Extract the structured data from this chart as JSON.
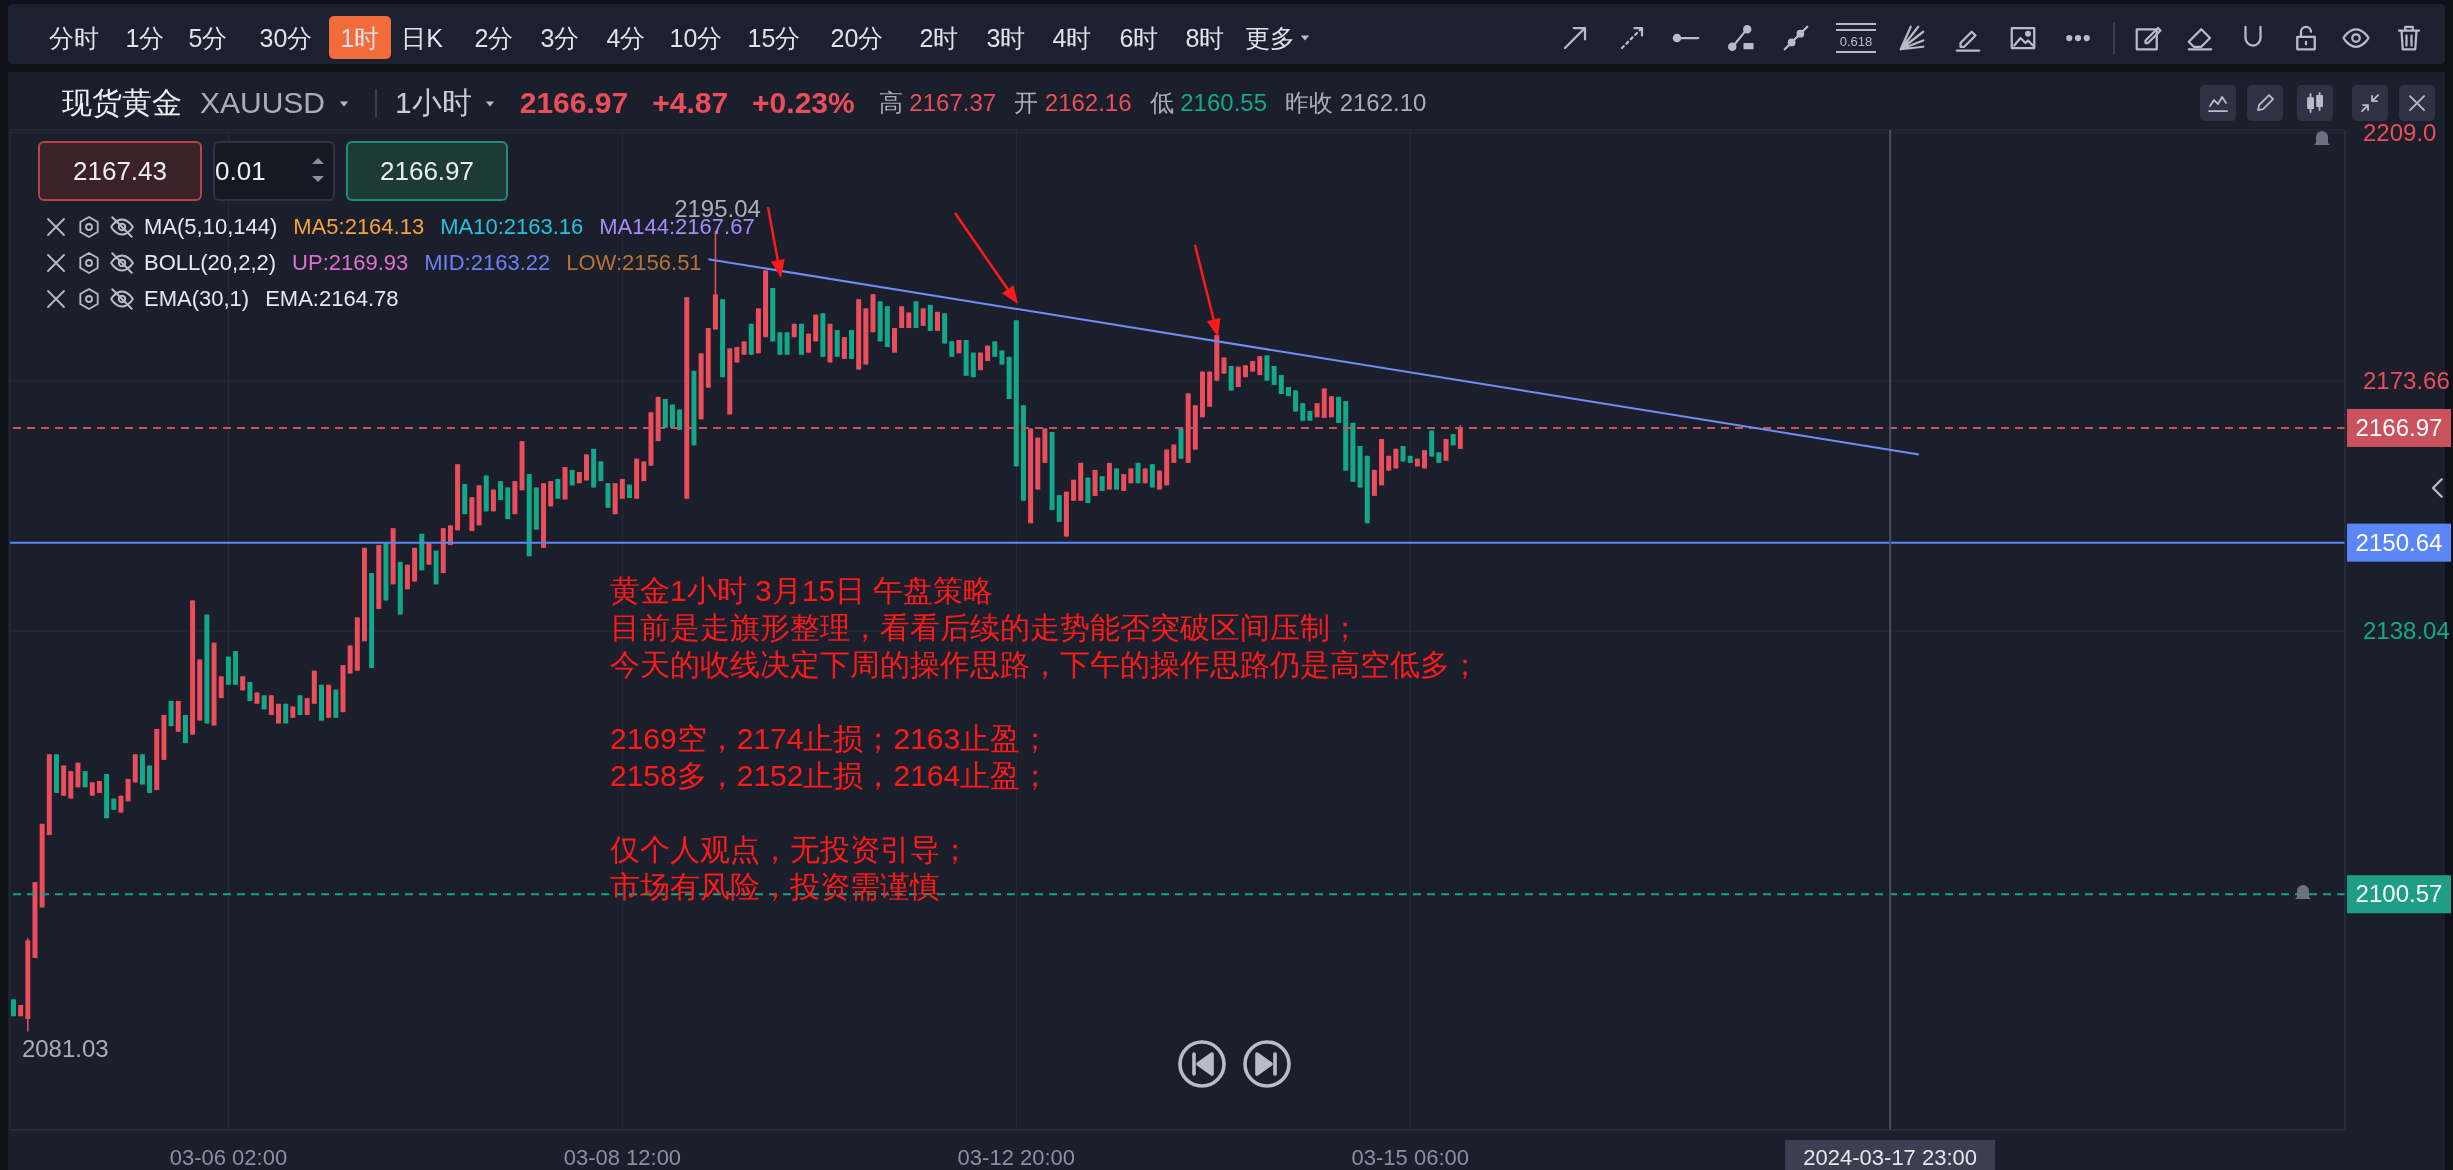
{
  "chart_data": {
    "type": "candlestick",
    "title": "现货黄金 XAUUSD",
    "subtitle": "1小时",
    "categories": [
      null,
      null,
      null,
      null,
      null,
      null,
      null,
      null,
      null,
      null,
      null,
      null,
      null,
      null,
      null,
      null,
      null,
      null,
      null,
      null,
      null,
      null,
      null,
      null,
      null,
      null,
      null,
      null,
      null,
      null,
      "03-06 02:00",
      null,
      null,
      null,
      null,
      null,
      null,
      null,
      null,
      null,
      null,
      null,
      null,
      null,
      null,
      null,
      null,
      null,
      null,
      null,
      null,
      null,
      null,
      null,
      null,
      null,
      null,
      null,
      null,
      null,
      null,
      null,
      null,
      null,
      null,
      null,
      null,
      null,
      null,
      null,
      null,
      null,
      null,
      null,
      null,
      null,
      null,
      null,
      null,
      null,
      null,
      null,
      null,
      null,
      null,
      "03-08 12:00",
      null,
      null,
      null,
      null,
      null,
      null,
      null,
      null,
      null,
      null,
      null,
      null,
      null,
      null,
      null,
      null,
      null,
      null,
      null,
      null,
      null,
      null,
      null,
      null,
      null,
      null,
      null,
      null,
      null,
      null,
      null,
      null,
      null,
      null,
      null,
      null,
      null,
      null,
      null,
      null,
      null,
      null,
      null,
      null,
      null,
      null,
      null,
      null,
      null,
      null,
      null,
      null,
      null,
      null,
      "03-12 20:00",
      null,
      null,
      null,
      null,
      null,
      null,
      null,
      null,
      null,
      null,
      null,
      null,
      null,
      null,
      null,
      null,
      null,
      null,
      null,
      null,
      null,
      null,
      null,
      null,
      null,
      null,
      null,
      null,
      null,
      null,
      null,
      null,
      null,
      null,
      null,
      null,
      null,
      null,
      null,
      null,
      null,
      null,
      null,
      null,
      null,
      null,
      null,
      null,
      null,
      null,
      null,
      null,
      null,
      null,
      "03-15 06:00",
      null,
      null,
      null,
      null,
      null,
      null,
      null,
      null,
      null,
      null,
      null,
      null,
      null,
      null,
      null,
      null,
      null,
      null,
      null,
      null,
      null,
      null,
      null,
      null,
      null,
      null,
      null,
      null,
      null,
      null,
      null,
      null,
      null,
      null,
      null,
      null,
      null,
      null,
      null,
      null,
      null,
      null,
      null,
      null,
      null,
      null,
      null,
      null,
      null,
      null,
      null,
      null,
      null,
      null,
      null,
      null,
      null,
      null,
      null,
      null,
      null,
      null,
      null,
      null,
      null,
      null,
      "2024-03-17 23:00",
      null,
      null,
      null,
      null,
      null,
      null,
      null,
      null,
      null,
      null,
      null,
      null,
      null,
      null,
      null,
      null,
      null,
      null,
      null,
      null,
      null,
      null,
      null,
      null,
      null,
      null,
      null,
      null,
      null,
      null,
      null,
      null,
      null,
      null,
      null,
      null,
      null,
      null,
      null,
      null,
      null,
      null,
      null,
      null,
      null,
      null,
      null,
      null,
      null,
      null,
      null,
      null,
      null,
      null,
      null,
      null,
      null,
      null,
      null,
      null,
      null,
      null,
      null
    ],
    "ohlc": [
      [
        2085.6,
        2085.6,
        2083.2,
        2083.2
      ],
      [
        2083.2,
        2084.8,
        2083.2,
        2084.8
      ],
      [
        2082.8,
        2094.3,
        2081.03,
        2094.0
      ],
      [
        2091.5,
        2102.3,
        2091.5,
        2102.3
      ],
      [
        2098.7,
        2110.6,
        2098.7,
        2110.6
      ],
      [
        2109.0,
        2120.5,
        2109.0,
        2120.5
      ],
      [
        2120.5,
        2120.5,
        2115.0,
        2115.0
      ],
      [
        2114.6,
        2118.9,
        2114.6,
        2118.9
      ],
      [
        2114.2,
        2118.1,
        2114.2,
        2118.1
      ],
      [
        2115.8,
        2119.3,
        2115.8,
        2119.3
      ],
      [
        2118.1,
        2118.1,
        2115.8,
        2115.8
      ],
      [
        2114.6,
        2116.5,
        2114.6,
        2116.5
      ],
      [
        2115.0,
        2116.7,
        2115.0,
        2116.7
      ],
      [
        2117.7,
        2117.7,
        2111.4,
        2111.4
      ],
      [
        2114.2,
        2114.2,
        2112.6,
        2112.6
      ],
      [
        2112.2,
        2114.6,
        2112.2,
        2114.6
      ],
      [
        2113.8,
        2117.0,
        2113.8,
        2117.0
      ],
      [
        2116.5,
        2120.5,
        2116.5,
        2120.5
      ],
      [
        2120.5,
        2120.5,
        2116.2,
        2116.2
      ],
      [
        2118.9,
        2118.9,
        2115.0,
        2115.0
      ],
      [
        2115.4,
        2124.1,
        2115.4,
        2124.1
      ],
      [
        2119.7,
        2126.1,
        2119.7,
        2126.1
      ],
      [
        2128.1,
        2128.1,
        2124.5,
        2124.5
      ],
      [
        2123.7,
        2128.1,
        2123.7,
        2128.1
      ],
      [
        2126.1,
        2126.1,
        2122.1,
        2122.1
      ],
      [
        2123.3,
        2142.4,
        2123.3,
        2142.4
      ],
      [
        2125.3,
        2134.0,
        2125.3,
        2134.0
      ],
      [
        2140.4,
        2140.4,
        2124.9,
        2124.9
      ],
      [
        2124.6,
        2136.4,
        2124.6,
        2136.4
      ],
      [
        2128.5,
        2131.6,
        2128.5,
        2131.6
      ],
      [
        2134.4,
        2134.4,
        2130.4,
        2130.4
      ],
      [
        2135.2,
        2135.2,
        2130.4,
        2130.4
      ],
      [
        2129.6,
        2131.6,
        2129.6,
        2131.6
      ],
      [
        2130.8,
        2130.8,
        2128.1,
        2128.1
      ],
      [
        2127.7,
        2129.3,
        2127.7,
        2129.3
      ],
      [
        2128.9,
        2128.9,
        2126.9,
        2126.9
      ],
      [
        2126.1,
        2128.9,
        2126.1,
        2128.9
      ],
      [
        2124.9,
        2127.7,
        2124.9,
        2127.7
      ],
      [
        2127.7,
        2127.7,
        2124.9,
        2124.9
      ],
      [
        2125.7,
        2127.3,
        2125.7,
        2127.3
      ],
      [
        2128.9,
        2128.9,
        2126.1,
        2126.1
      ],
      [
        2126.1,
        2128.5,
        2126.1,
        2128.5
      ],
      [
        2127.7,
        2132.4,
        2127.7,
        2132.4
      ],
      [
        2130.4,
        2130.4,
        2125.3,
        2125.3
      ],
      [
        2125.7,
        2130.4,
        2125.7,
        2130.4
      ],
      [
        2129.7,
        2129.7,
        2125.7,
        2125.7
      ],
      [
        2126.5,
        2133.2,
        2126.5,
        2133.2
      ],
      [
        2132.0,
        2136.0,
        2132.0,
        2136.0
      ],
      [
        2132.4,
        2140.0,
        2132.4,
        2140.0
      ],
      [
        2136.6,
        2149.9,
        2136.6,
        2149.9
      ],
      [
        2146.3,
        2146.3,
        2132.8,
        2132.8
      ],
      [
        2141.2,
        2150.3,
        2141.2,
        2150.3
      ],
      [
        2150.7,
        2150.7,
        2142.4,
        2142.4
      ],
      [
        2144.7,
        2152.7,
        2144.7,
        2152.7
      ],
      [
        2147.9,
        2147.9,
        2140.4,
        2140.4
      ],
      [
        2144.0,
        2147.5,
        2144.0,
        2147.5
      ],
      [
        2145.1,
        2149.9,
        2145.1,
        2149.9
      ],
      [
        2151.9,
        2151.9,
        2146.7,
        2146.7
      ],
      [
        2147.5,
        2150.7,
        2147.5,
        2150.7
      ],
      [
        2149.5,
        2149.5,
        2144.7,
        2144.7
      ],
      [
        2146.3,
        2152.7,
        2146.3,
        2152.7
      ],
      [
        2150.3,
        2153.1,
        2150.3,
        2153.1
      ],
      [
        2152.4,
        2161.8,
        2152.4,
        2161.8
      ],
      [
        2159.0,
        2159.0,
        2154.7,
        2154.7
      ],
      [
        2152.3,
        2157.1,
        2152.3,
        2157.1
      ],
      [
        2153.1,
        2158.8,
        2153.1,
        2158.8
      ],
      [
        2160.2,
        2160.2,
        2155.1,
        2155.1
      ],
      [
        2155.1,
        2158.2,
        2155.1,
        2158.2
      ],
      [
        2159.4,
        2159.4,
        2156.7,
        2156.7
      ],
      [
        2158.5,
        2158.5,
        2154.0,
        2154.0
      ],
      [
        2154.7,
        2159.4,
        2154.7,
        2159.4
      ],
      [
        2158.1,
        2165.1,
        2158.1,
        2165.1
      ],
      [
        2160.4,
        2160.4,
        2148.7,
        2148.7
      ],
      [
        2158.5,
        2158.5,
        2152.5,
        2152.5
      ],
      [
        2149.9,
        2159.1,
        2149.9,
        2159.1
      ],
      [
        2155.8,
        2159.4,
        2155.8,
        2159.4
      ],
      [
        2159.7,
        2159.7,
        2156.9,
        2156.9
      ],
      [
        2156.8,
        2161.4,
        2156.8,
        2161.4
      ],
      [
        2161.0,
        2161.0,
        2158.8,
        2158.8
      ],
      [
        2159.1,
        2160.7,
        2159.1,
        2160.7
      ],
      [
        2159.5,
        2163.2,
        2159.5,
        2163.2
      ],
      [
        2164.0,
        2164.0,
        2158.5,
        2158.5
      ],
      [
        2162.2,
        2162.2,
        2159.4,
        2159.4
      ],
      [
        2159.1,
        2159.1,
        2155.6,
        2155.6
      ],
      [
        2154.7,
        2159.1,
        2154.7,
        2159.1
      ],
      [
        2156.9,
        2159.7,
        2156.9,
        2159.7
      ],
      [
        2158.9,
        2158.9,
        2157.0,
        2157.0
      ],
      [
        2156.9,
        2162.6,
        2156.9,
        2162.6
      ],
      [
        2159.4,
        2162.2,
        2159.4,
        2162.2
      ],
      [
        2161.6,
        2169.2,
        2161.6,
        2169.2
      ],
      [
        2165.1,
        2171.4,
        2165.1,
        2171.4
      ],
      [
        2171.1,
        2171.1,
        2167.0,
        2167.0
      ],
      [
        2170.3,
        2170.3,
        2167.0,
        2167.0
      ],
      [
        2169.6,
        2169.6,
        2166.7,
        2166.7
      ],
      [
        2156.9,
        2185.6,
        2156.9,
        2185.6
      ],
      [
        2175.1,
        2175.1,
        2164.5,
        2164.5
      ],
      [
        2168.2,
        2177.6,
        2168.2,
        2177.6
      ],
      [
        2172.7,
        2181.2,
        2172.7,
        2181.2
      ],
      [
        2181.0,
        2195.04,
        2181.0,
        2186.0
      ],
      [
        2185.3,
        2185.3,
        2174.2,
        2174.2
      ],
      [
        2168.9,
        2178.3,
        2168.9,
        2178.3
      ],
      [
        2176.3,
        2178.5,
        2176.3,
        2178.5
      ],
      [
        2177.4,
        2179.3,
        2177.4,
        2179.3
      ],
      [
        2181.8,
        2181.8,
        2177.4,
        2177.4
      ],
      [
        2177.6,
        2184.0,
        2177.6,
        2184.0
      ],
      [
        2179.9,
        2189.4,
        2179.9,
        2189.4
      ],
      [
        2186.9,
        2186.9,
        2179.3,
        2179.3
      ],
      [
        2180.6,
        2180.6,
        2177.4,
        2177.4
      ],
      [
        2180.6,
        2180.6,
        2177.4,
        2177.4
      ],
      [
        2179.9,
        2181.8,
        2179.9,
        2181.8
      ],
      [
        2181.8,
        2181.8,
        2177.4,
        2177.4
      ],
      [
        2177.7,
        2180.4,
        2177.7,
        2180.4
      ],
      [
        2179.3,
        2183.1,
        2179.3,
        2183.1
      ],
      [
        2183.3,
        2183.3,
        2177.1,
        2177.1
      ],
      [
        2176.3,
        2181.8,
        2176.3,
        2181.8
      ],
      [
        2180.9,
        2180.9,
        2177.1,
        2177.1
      ],
      [
        2176.8,
        2179.9,
        2176.8,
        2179.9
      ],
      [
        2180.9,
        2180.9,
        2176.8,
        2176.8
      ],
      [
        2175.3,
        2185.3,
        2175.3,
        2185.3
      ],
      [
        2176.0,
        2184.0,
        2176.0,
        2184.0
      ],
      [
        2180.6,
        2186.0,
        2180.6,
        2186.0
      ],
      [
        2185.0,
        2185.0,
        2179.3,
        2179.3
      ],
      [
        2184.3,
        2184.3,
        2178.5,
        2178.5
      ],
      [
        2177.7,
        2181.2,
        2177.7,
        2181.2
      ],
      [
        2181.2,
        2184.3,
        2181.2,
        2184.3
      ],
      [
        2181.2,
        2183.4,
        2181.2,
        2183.4
      ],
      [
        2185.0,
        2185.0,
        2181.2,
        2181.2
      ],
      [
        2181.5,
        2184.0,
        2181.5,
        2184.0
      ],
      [
        2184.5,
        2184.5,
        2180.8,
        2180.8
      ],
      [
        2180.8,
        2183.5,
        2180.8,
        2183.5
      ],
      [
        2183.3,
        2183.3,
        2179.0,
        2179.0
      ],
      [
        2179.3,
        2179.3,
        2177.1,
        2177.1
      ],
      [
        2177.6,
        2179.5,
        2177.6,
        2179.5
      ],
      [
        2179.5,
        2179.5,
        2174.4,
        2174.4
      ],
      [
        2177.7,
        2177.7,
        2174.2,
        2174.2
      ],
      [
        2175.2,
        2177.7,
        2175.2,
        2177.7
      ],
      [
        2176.5,
        2178.7,
        2176.5,
        2178.7
      ],
      [
        2179.3,
        2179.3,
        2177.1,
        2177.1
      ],
      [
        2178.0,
        2178.0,
        2176.0,
        2176.0
      ],
      [
        2177.1,
        2177.1,
        2171.1,
        2171.1
      ],
      [
        2182.3,
        2182.3,
        2161.5,
        2161.5
      ],
      [
        2170.2,
        2170.2,
        2156.6,
        2156.6
      ],
      [
        2153.4,
        2166.9,
        2153.4,
        2166.9
      ],
      [
        2158.2,
        2165.6,
        2158.2,
        2165.6
      ],
      [
        2162.0,
        2166.9,
        2162.0,
        2166.9
      ],
      [
        2166.4,
        2166.4,
        2155.3,
        2155.3
      ],
      [
        2157.4,
        2157.4,
        2153.6,
        2153.6
      ],
      [
        2151.5,
        2157.9,
        2151.5,
        2157.9
      ],
      [
        2156.6,
        2159.6,
        2156.6,
        2159.6
      ],
      [
        2156.6,
        2162.0,
        2156.6,
        2162.0
      ],
      [
        2159.9,
        2159.9,
        2156.3,
        2156.3
      ],
      [
        2157.3,
        2161.0,
        2157.3,
        2161.0
      ],
      [
        2160.1,
        2160.1,
        2158.0,
        2158.0
      ],
      [
        2158.2,
        2162.0,
        2158.2,
        2162.0
      ],
      [
        2161.2,
        2161.2,
        2158.2,
        2158.2
      ],
      [
        2158.0,
        2160.4,
        2158.0,
        2160.4
      ],
      [
        2159.1,
        2161.2,
        2159.1,
        2161.2
      ],
      [
        2162.0,
        2162.0,
        2159.1,
        2159.1
      ],
      [
        2159.1,
        2161.2,
        2159.1,
        2161.2
      ],
      [
        2161.8,
        2161.8,
        2158.5,
        2158.5
      ],
      [
        2158.2,
        2160.9,
        2158.2,
        2160.9
      ],
      [
        2158.8,
        2163.9,
        2158.8,
        2163.9
      ],
      [
        2162.0,
        2164.6,
        2162.0,
        2164.6
      ],
      [
        2166.9,
        2166.9,
        2162.6,
        2162.6
      ],
      [
        2162.0,
        2171.9,
        2162.0,
        2171.9
      ],
      [
        2163.9,
        2170.2,
        2163.9,
        2170.2
      ],
      [
        2168.5,
        2175.0,
        2168.5,
        2175.0
      ],
      [
        2170.0,
        2175.0,
        2170.0,
        2175.0
      ],
      [
        2173.7,
        2180.2,
        2173.7,
        2180.2
      ],
      [
        2174.7,
        2177.0,
        2174.7,
        2177.0
      ],
      [
        2175.8,
        2175.8,
        2172.3,
        2172.3
      ],
      [
        2172.8,
        2175.7,
        2172.8,
        2175.7
      ],
      [
        2174.2,
        2175.9,
        2174.2,
        2175.9
      ],
      [
        2175.0,
        2176.5,
        2175.0,
        2176.5
      ],
      [
        2174.5,
        2177.2,
        2174.5,
        2177.2
      ],
      [
        2177.3,
        2177.3,
        2173.7,
        2173.7
      ],
      [
        2175.8,
        2175.8,
        2173.1,
        2173.1
      ],
      [
        2174.5,
        2174.5,
        2171.8,
        2171.8
      ],
      [
        2172.8,
        2172.8,
        2171.5,
        2171.5
      ],
      [
        2172.3,
        2172.3,
        2169.3,
        2169.3
      ],
      [
        2170.5,
        2170.5,
        2168.0,
        2168.0
      ],
      [
        2169.4,
        2169.4,
        2168.0,
        2168.0
      ],
      [
        2168.5,
        2170.5,
        2168.5,
        2170.5
      ],
      [
        2168.4,
        2172.6,
        2168.4,
        2172.6
      ],
      [
        2168.5,
        2171.5,
        2168.5,
        2171.5
      ],
      [
        2171.4,
        2171.4,
        2167.7,
        2167.7
      ],
      [
        2170.8,
        2170.8,
        2160.9,
        2160.9
      ],
      [
        2167.7,
        2167.7,
        2159.3,
        2159.3
      ],
      [
        2164.4,
        2164.4,
        2158.5,
        2158.5
      ],
      [
        2163.0,
        2163.0,
        2153.4,
        2153.4
      ],
      [
        2157.3,
        2161.0,
        2157.3,
        2161.0
      ],
      [
        2158.8,
        2165.4,
        2158.8,
        2165.4
      ],
      [
        2160.9,
        2163.0,
        2160.9,
        2163.0
      ],
      [
        2161.2,
        2164.0,
        2161.2,
        2164.0
      ],
      [
        2164.4,
        2164.4,
        2162.2,
        2162.2
      ],
      [
        2163.0,
        2163.0,
        2162.0,
        2162.0
      ],
      [
        2161.5,
        2162.6,
        2161.5,
        2162.6
      ],
      [
        2161.2,
        2163.8,
        2161.2,
        2163.8
      ],
      [
        2166.6,
        2166.6,
        2162.9,
        2162.9
      ],
      [
        2163.5,
        2163.5,
        2162.0,
        2162.0
      ],
      [
        2162.3,
        2165.4,
        2162.3,
        2165.4
      ],
      [
        2166.1,
        2166.1,
        2164.5,
        2164.5
      ],
      [
        2164.0,
        2167.37,
        2164.0,
        2166.97
      ],
      null,
      null,
      null,
      null,
      null,
      null,
      null,
      null,
      null,
      null,
      null,
      null,
      null,
      null,
      null,
      null,
      null,
      null,
      null,
      null,
      null,
      null,
      null,
      null,
      null,
      null,
      null,
      null,
      null,
      null,
      null,
      null,
      null,
      null,
      null,
      null,
      null,
      null,
      null,
      null,
      null,
      null,
      null,
      null,
      null,
      null,
      null,
      null,
      null,
      null,
      null,
      null,
      null,
      null,
      null,
      null,
      null,
      null,
      null,
      null,
      null,
      null,
      null,
      null,
      null,
      null,
      null,
      null,
      null,
      null,
      null,
      null,
      null,
      null,
      null,
      null,
      null,
      null,
      null,
      null,
      null,
      null,
      null,
      null,
      null,
      null,
      null,
      null,
      null,
      null,
      null,
      null,
      null,
      null,
      null,
      null,
      null,
      null,
      null,
      null,
      null,
      null,
      null,
      null,
      null,
      null,
      null,
      null,
      null,
      null,
      null,
      null,
      null,
      null,
      null,
      null,
      null,
      null,
      null,
      null,
      null,
      null,
      null
    ],
    "series": [
      {
        "type": "line",
        "color": "#6e8ef5",
        "values": [
          null,
          null,
          null,
          null,
          null,
          null,
          null,
          null,
          null,
          null,
          null,
          null,
          null,
          null,
          null,
          null,
          null,
          null,
          null,
          null,
          null,
          null,
          null,
          null,
          null,
          null,
          null,
          null,
          null,
          null,
          null,
          null,
          null,
          null,
          null,
          null,
          null,
          null,
          null,
          null,
          null,
          null,
          null,
          null,
          null,
          null,
          null,
          null,
          null,
          null,
          null,
          null,
          null,
          null,
          null,
          null,
          null,
          null,
          null,
          null,
          null,
          null,
          null,
          null,
          null,
          null,
          null,
          null,
          null,
          null,
          null,
          null,
          null,
          null,
          null,
          null,
          null,
          null,
          null,
          null,
          null,
          null,
          null,
          null,
          null,
          null,
          null,
          null,
          null,
          null,
          null,
          null,
          null,
          null,
          null,
          null,
          null,
          2191.0,
          null,
          null,
          null,
          null,
          null,
          null,
          null,
          null,
          null,
          null,
          null,
          null,
          null,
          null,
          null,
          null,
          null,
          null,
          null,
          null,
          null,
          null,
          null,
          null,
          null,
          null,
          null,
          null,
          null,
          null,
          null,
          null,
          null,
          null,
          null,
          null,
          null,
          null,
          null,
          null,
          null,
          null,
          null,
          null,
          null,
          null,
          null,
          null,
          null,
          null,
          null,
          null,
          null,
          null,
          null,
          null,
          null,
          null,
          null,
          null,
          null,
          null,
          null,
          null,
          null,
          null,
          null,
          null,
          null,
          null,
          null,
          null,
          null,
          null,
          null,
          null,
          null,
          null,
          null,
          null,
          null,
          null,
          null,
          null,
          null,
          null,
          null,
          null,
          null,
          null,
          null,
          null,
          null,
          null,
          null,
          null,
          null,
          null,
          null,
          null,
          null,
          null,
          null,
          null,
          null,
          null,
          null,
          null,
          null,
          null,
          null,
          null,
          null,
          null,
          null,
          null,
          null,
          null,
          null,
          null,
          null,
          null,
          null,
          null,
          null,
          null,
          null,
          null,
          null,
          null,
          null,
          null,
          null,
          null,
          null,
          null,
          null,
          null,
          null,
          null,
          null,
          null,
          null,
          null,
          null,
          null,
          null,
          null,
          null,
          null,
          null,
          null,
          null,
          null,
          null,
          null,
          null,
          null,
          null,
          null,
          null,
          null,
          null,
          null,
          null,
          null,
          null,
          null,
          2163.2,
          null,
          null,
          null,
          null,
          null,
          null,
          null,
          null,
          null,
          null,
          null,
          null,
          null,
          null,
          null,
          null,
          null,
          null,
          null,
          null,
          null,
          null,
          null,
          null,
          null,
          null,
          null,
          null,
          null,
          null,
          null,
          null,
          null,
          null,
          null,
          null,
          null,
          null,
          null,
          null,
          null,
          null,
          null,
          null,
          null,
          null,
          null,
          null,
          null,
          null,
          null,
          null,
          null,
          null,
          null,
          null,
          null,
          null,
          null
        ]
      }
    ],
    "ylim": [
      2067,
      2209.4
    ],
    "yticks": [
      2138.04,
      2173.66,
      {
        "value": 2209,
        "label": "2209.0"
      }
    ],
    "grid": true,
    "ref_lines": [
      {
        "axis": "y",
        "value": 2166.97,
        "label": "2166.97",
        "color": "#c9525c",
        "line_style": "dashed"
      },
      {
        "axis": "y",
        "value": 2150.64,
        "label": "2150.64",
        "color": "#5b86f7",
        "line_style": "solid"
      },
      {
        "axis": "y",
        "value": 2100.57,
        "label": "2100.57",
        "color": "#1f9e86",
        "line_style": "dashed"
      },
      {
        "axis": "x",
        "value": "2024-03-17 23:00",
        "color": "#4a5060",
        "line_style": "solid"
      }
    ],
    "annotations": [
      "分时",
      "1分",
      "5分",
      "30分",
      "1时",
      "日K",
      "2分",
      "3分",
      "4分",
      "10分",
      "15分",
      "20分",
      "2时",
      "3时",
      "4时",
      "6时",
      "8时",
      "更多",
      "2166.97",
      "+4.87",
      "+0.23%",
      "高 2167.37",
      "开 2162.16",
      "低 2160.55",
      "昨收 2162.10",
      "2167.43",
      "0.01",
      "2166.97",
      "MA(5,10,144)",
      "MA5:2164.13",
      "MA10:2163.16",
      "MA144:2167.67",
      "BOLL(20,2,2)",
      "UP:2169.93",
      "MID:2163.22",
      "LOW:2156.51",
      "EMA(30,1)",
      "EMA:2164.78",
      "黄金1小时 3月15日 午盘策略",
      "目前是走旗形整理，看看后续的走势能否突破区间压制；",
      "今天的收线决定下周的操作思路，下午的操作思路仍是高空低多；",
      "2169空，2174止损；2163止盈；",
      "2158多，2152止损，2164止盈；",
      "仅个人观点，无投资引导；",
      "市场有风险，投资需谨慎",
      "0.618",
      {
        "text": "2195.04",
        "y": 2195.04
      },
      "2081.03"
    ]
  }
}
